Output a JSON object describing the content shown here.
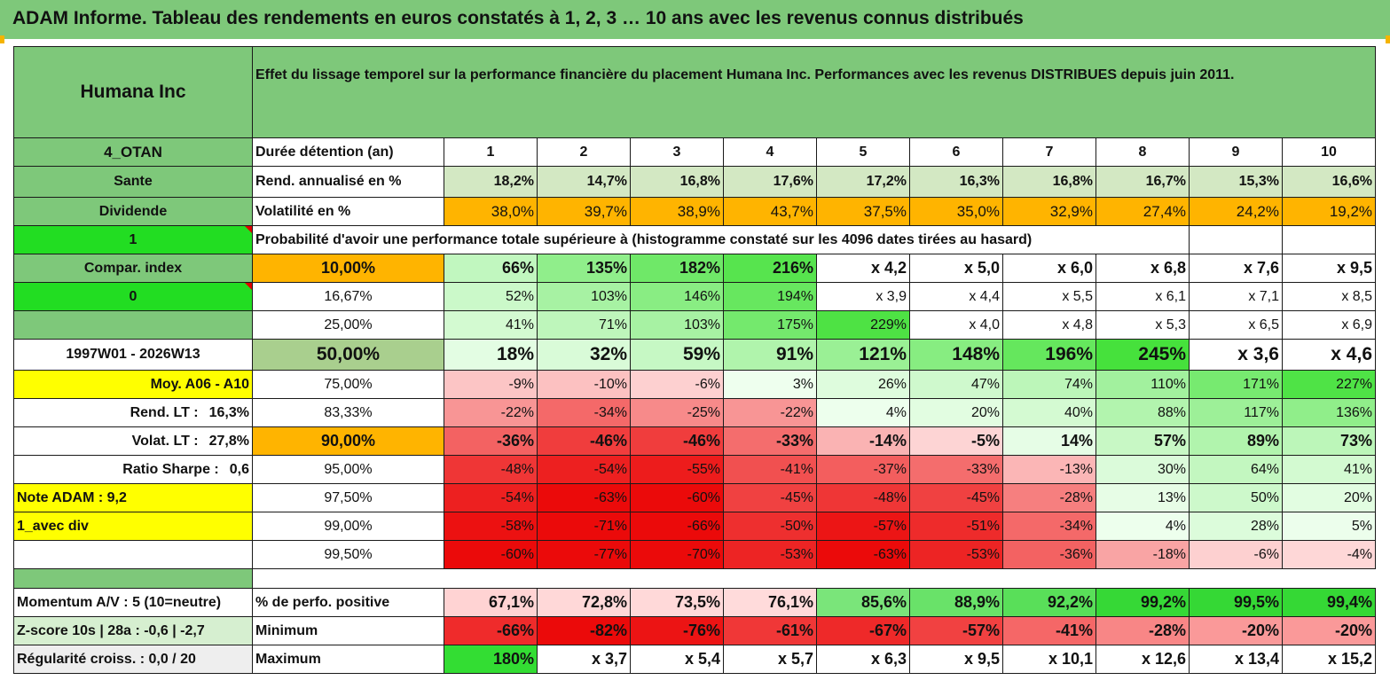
{
  "title": "ADAM Informe. Tableau des rendements en euros constatés à 1, 2, 3 … 10 ans avec les revenus connus distribués",
  "colors": {
    "header_green": "#7ec87a",
    "bright_green": "#22dd22",
    "orange": "#ffb400",
    "yellow": "#ffff00",
    "red_text": "#e00000"
  },
  "side": {
    "company": "Humana Inc",
    "code": "4_OTAN",
    "sector": "Sante",
    "category": "Dividende",
    "flag1": "1",
    "compar_index": "Compar. index",
    "flag0": "0",
    "period": "1997W01 - 2026W13",
    "moy": "Moy. A06 - A10",
    "rend_lt_label": "Rend. LT :",
    "rend_lt_value": "16,3%",
    "volat_lt_label": "Volat. LT :",
    "volat_lt_value": "27,8%",
    "sharpe_label": "Ratio Sharpe :",
    "sharpe_value": "0,6",
    "note": "Note ADAM : 9,2",
    "avec_div": "1_avec div"
  },
  "header_text": "Effet du lissage temporel sur la performance financière du placement Humana Inc. Performances avec les revenus DISTRIBUES depuis juin 2011.",
  "duration_label": "Durée détention (an)",
  "years": [
    "1",
    "2",
    "3",
    "4",
    "5",
    "6",
    "7",
    "8",
    "9",
    "10"
  ],
  "rend_label": "Rend. annualisé en %",
  "rend": [
    "18,2%",
    "14,7%",
    "16,8%",
    "17,6%",
    "17,2%",
    "16,3%",
    "16,8%",
    "16,7%",
    "15,3%",
    "16,6%"
  ],
  "vol_label": "Volatilité en %",
  "vol": [
    "38,0%",
    "39,7%",
    "38,9%",
    "43,7%",
    "37,5%",
    "35,0%",
    "32,9%",
    "27,4%",
    "24,2%",
    "19,2%"
  ],
  "prob_text": "Probabilité d'avoir une performance totale supérieure à (histogramme constaté sur les 4096 dates tirées au hasard)",
  "prob_rows": [
    {
      "pct": "10,00%",
      "vals": [
        "66%",
        "135%",
        "182%",
        "216%",
        "x 4,2",
        "x 5,0",
        "x 6,0",
        "x 6,8",
        "x 7,6",
        "x 9,5"
      ]
    },
    {
      "pct": "16,67%",
      "vals": [
        "52%",
        "103%",
        "146%",
        "194%",
        "x 3,9",
        "x 4,4",
        "x 5,5",
        "x 6,1",
        "x 7,1",
        "x 8,5"
      ]
    },
    {
      "pct": "25,00%",
      "vals": [
        "41%",
        "71%",
        "103%",
        "175%",
        "229%",
        "x 4,0",
        "x 4,8",
        "x 5,3",
        "x 6,5",
        "x 6,9"
      ]
    },
    {
      "pct": "50,00%",
      "vals": [
        "18%",
        "32%",
        "59%",
        "91%",
        "121%",
        "148%",
        "196%",
        "245%",
        "x 3,6",
        "x 4,6"
      ]
    },
    {
      "pct": "75,00%",
      "vals": [
        "-9%",
        "-10%",
        "-6%",
        "3%",
        "26%",
        "47%",
        "74%",
        "110%",
        "171%",
        "227%"
      ]
    },
    {
      "pct": "83,33%",
      "vals": [
        "-22%",
        "-34%",
        "-25%",
        "-22%",
        "4%",
        "20%",
        "40%",
        "88%",
        "117%",
        "136%"
      ]
    },
    {
      "pct": "90,00%",
      "vals": [
        "-36%",
        "-46%",
        "-46%",
        "-33%",
        "-14%",
        "-5%",
        "14%",
        "57%",
        "89%",
        "73%"
      ]
    },
    {
      "pct": "95,00%",
      "vals": [
        "-48%",
        "-54%",
        "-55%",
        "-41%",
        "-37%",
        "-33%",
        "-13%",
        "30%",
        "64%",
        "41%"
      ]
    },
    {
      "pct": "97,50%",
      "vals": [
        "-54%",
        "-63%",
        "-60%",
        "-45%",
        "-48%",
        "-45%",
        "-28%",
        "13%",
        "50%",
        "20%"
      ]
    },
    {
      "pct": "99,00%",
      "vals": [
        "-58%",
        "-71%",
        "-66%",
        "-50%",
        "-57%",
        "-51%",
        "-34%",
        "4%",
        "28%",
        "5%"
      ]
    },
    {
      "pct": "99,50%",
      "vals": [
        "-60%",
        "-77%",
        "-70%",
        "-53%",
        "-63%",
        "-53%",
        "-36%",
        "-18%",
        "-6%",
        "-4%"
      ]
    }
  ],
  "footer": [
    {
      "label": "Momentum A/V : 5 (10=neutre)",
      "metric": "% de perfo. positive",
      "vals": [
        "67,1%",
        "72,8%",
        "73,5%",
        "76,1%",
        "85,6%",
        "88,9%",
        "92,2%",
        "99,2%",
        "99,5%",
        "99,4%"
      ]
    },
    {
      "label": "Z-score 10s | 28a : -0,6 | -2,7",
      "metric": "Minimum",
      "vals": [
        "-66%",
        "-82%",
        "-76%",
        "-61%",
        "-67%",
        "-57%",
        "-41%",
        "-28%",
        "-20%",
        "-20%"
      ]
    },
    {
      "label": "Régularité croiss. : 0,0 / 20",
      "metric": "Maximum",
      "vals": [
        "180%",
        "x 3,7",
        "x 5,4",
        "x 5,7",
        "x 6,3",
        "x 9,5",
        "x 10,1",
        "x 12,6",
        "x 13,4",
        "x 15,2"
      ]
    }
  ]
}
